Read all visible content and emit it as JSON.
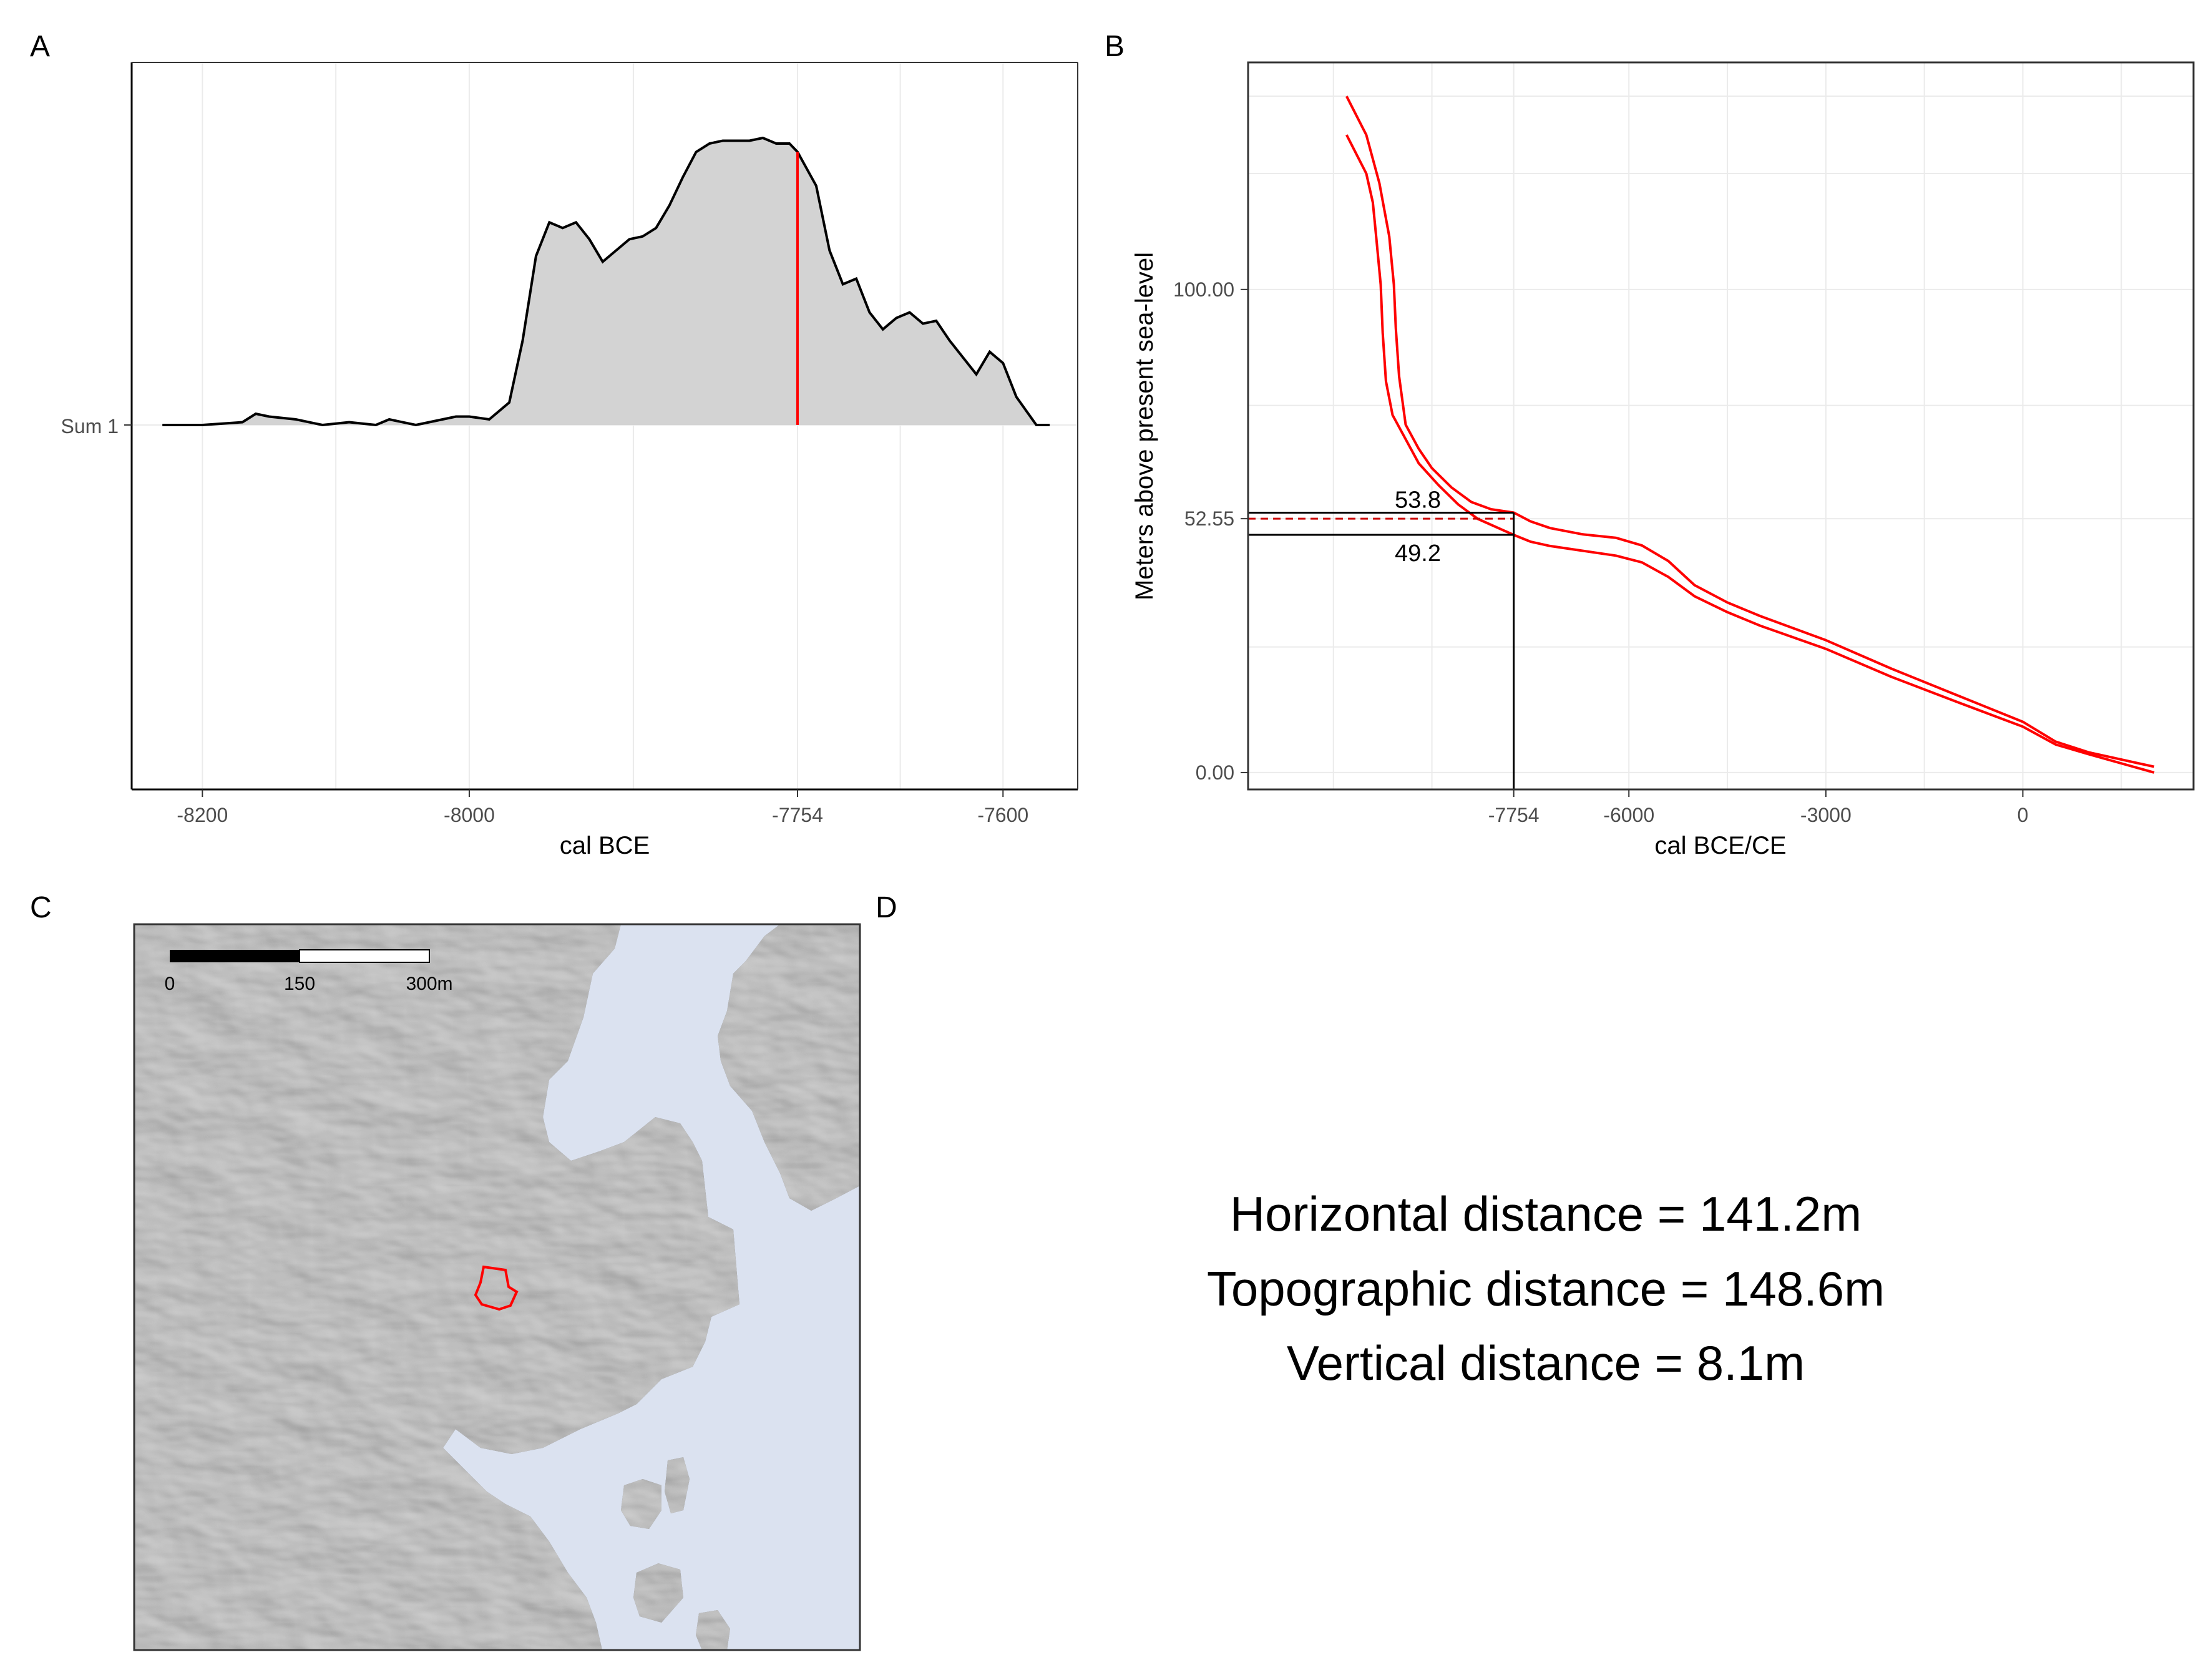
{
  "panels": {
    "a": {
      "letter": "A"
    },
    "b": {
      "letter": "B"
    },
    "c": {
      "letter": "C"
    },
    "d": {
      "letter": "D"
    }
  },
  "chart_data": [
    {
      "type": "area",
      "panel": "A",
      "title": "",
      "xlabel": "cal BCE",
      "ylabel": "",
      "xlim": [
        -8253,
        -7544
      ],
      "x_ticks": [
        {
          "value": -8200,
          "label": "-8200"
        },
        {
          "value": -8000,
          "label": "-8000"
        },
        {
          "value": -7754,
          "label": "-7754"
        },
        {
          "value": -7600,
          "label": "-7600"
        }
      ],
      "y_category": "Sum 1",
      "series": [
        {
          "x": [
            -8230,
            -8200,
            -8170,
            -8160,
            -8150,
            -8130,
            -8110,
            -8090,
            -8070,
            -8060,
            -8040,
            -8030,
            -8010,
            -8000,
            -7985,
            -7970,
            -7960,
            -7950,
            -7940,
            -7930,
            -7920,
            -7910,
            -7900,
            -7890,
            -7880,
            -7870,
            -7860,
            -7850,
            -7840,
            -7830,
            -7820,
            -7810,
            -7800,
            -7790,
            -7780,
            -7770,
            -7760,
            -7754,
            -7740,
            -7730,
            -7720,
            -7710,
            -7700,
            -7690,
            -7680,
            -7670,
            -7660,
            -7650,
            -7640,
            -7630,
            -7620,
            -7610,
            -7600,
            -7590,
            -7575,
            -7565
          ],
          "y": [
            0.0,
            0.0,
            0.01,
            0.04,
            0.03,
            0.02,
            0.0,
            0.01,
            0.0,
            0.02,
            0.0,
            0.01,
            0.03,
            0.03,
            0.02,
            0.08,
            0.3,
            0.6,
            0.72,
            0.7,
            0.72,
            0.66,
            0.58,
            0.62,
            0.66,
            0.67,
            0.7,
            0.78,
            0.88,
            0.97,
            1.0,
            1.01,
            1.01,
            1.01,
            1.02,
            1.0,
            1.0,
            0.97,
            0.85,
            0.62,
            0.5,
            0.52,
            0.4,
            0.34,
            0.38,
            0.4,
            0.36,
            0.37,
            0.3,
            0.24,
            0.18,
            0.26,
            0.22,
            0.1,
            0.0,
            0.0
          ]
        }
      ],
      "annotations": [
        {
          "type": "vline",
          "x": -7754,
          "color": "#ff0000"
        }
      ],
      "grid": true
    },
    {
      "type": "line",
      "panel": "B",
      "title": "",
      "xlabel": "cal BCE/CE",
      "ylabel": "Meters above present sea-level",
      "xlim": [
        -11800,
        2600
      ],
      "ylim": [
        -3.5,
        147
      ],
      "x_ticks": [
        {
          "value": -7754,
          "label": "-7754"
        },
        {
          "value": -6000,
          "label": "-6000"
        },
        {
          "value": -3000,
          "label": "-3000"
        },
        {
          "value": 0,
          "label": "0"
        }
      ],
      "y_ticks": [
        {
          "value": 0,
          "label": "0.00"
        },
        {
          "value": 52.55,
          "label": "52.55"
        },
        {
          "value": 100,
          "label": "100.00"
        }
      ],
      "series": [
        {
          "x": [
            -10300,
            -10000,
            -9800,
            -9650,
            -9580,
            -9550,
            -9500,
            -9400,
            -9200,
            -9000,
            -8700,
            -8400,
            -8100,
            -7754,
            -7500,
            -7200,
            -6700,
            -6200,
            -5800,
            -5400,
            -5000,
            -4500,
            -4000,
            -3000,
            -2000,
            -1000,
            0,
            500,
            1000,
            2000
          ],
          "y": [
            140,
            132,
            122,
            111,
            101,
            92,
            82,
            72,
            67,
            63,
            59,
            56,
            54.5,
            53.8,
            52,
            50.6,
            49.3,
            48.6,
            47,
            43.8,
            38.8,
            35.2,
            32.4,
            27.4,
            21.5,
            16.0,
            10.5,
            6.4,
            4.2,
            1.2
          ],
          "color": "#ff0000"
        },
        {
          "x": [
            -10300,
            -10000,
            -9900,
            -9850,
            -9780,
            -9750,
            -9700,
            -9600,
            -9400,
            -9200,
            -8900,
            -8600,
            -8300,
            -7754,
            -7500,
            -7200,
            -6700,
            -6200,
            -5800,
            -5400,
            -5000,
            -4500,
            -4000,
            -3000,
            -2000,
            -1000,
            0,
            500,
            1000,
            2000
          ],
          "y": [
            132,
            124,
            118,
            111,
            101,
            91,
            81,
            74,
            69,
            64,
            59.5,
            55.5,
            52.5,
            49.2,
            47.8,
            46.9,
            45.9,
            44.9,
            43.5,
            40.5,
            36.5,
            33.2,
            30.4,
            25.6,
            19.8,
            14.6,
            9.5,
            5.8,
            3.8,
            0.0
          ],
          "color": "#ff0000"
        }
      ],
      "annotations": [
        {
          "type": "hsegment",
          "y": 53.8,
          "x_end": -7754,
          "label": "53.8"
        },
        {
          "type": "hsegment_dashed",
          "y": 52.55,
          "x_end": -7754
        },
        {
          "type": "hsegment",
          "y": 49.2,
          "x_end": -7754,
          "label": "49.2"
        },
        {
          "type": "vsegment",
          "x": -7754,
          "y_end": 53.8
        }
      ],
      "grid": true
    }
  ],
  "map": {
    "scale_bar": {
      "labels": [
        "0",
        "150",
        "300m"
      ]
    },
    "colors": {
      "water": "#dbe2f0",
      "land_base": "#7a7a7a",
      "site_outline": "#ff0000"
    }
  },
  "results": {
    "horizontal": "Horizontal distance = 141.2m",
    "topographic": "Topographic distance = 148.6m",
    "vertical": "Vertical distance = 8.1m"
  }
}
